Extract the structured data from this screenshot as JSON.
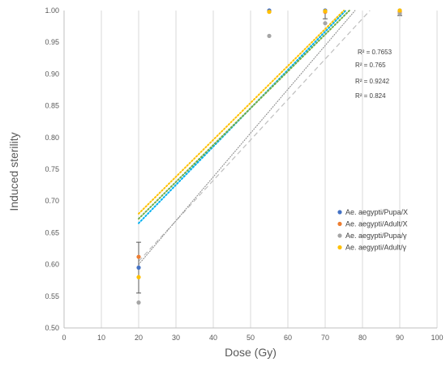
{
  "chart_data": {
    "type": "scatter",
    "title": "",
    "xlabel": "Dose (Gy)",
    "ylabel": "Induced sterility",
    "xlim": [
      0,
      100
    ],
    "ylim": [
      0.5,
      1.0
    ],
    "x_ticks": [
      "0",
      "10",
      "20",
      "30",
      "40",
      "50",
      "60",
      "70",
      "80",
      "90",
      "100"
    ],
    "y_ticks": [
      "0.50",
      "0.55",
      "0.60",
      "0.65",
      "0.70",
      "0.75",
      "0.80",
      "0.85",
      "0.90",
      "0.95",
      "1.00"
    ],
    "grid": "vertical",
    "legend_position": "right-middle",
    "series": [
      {
        "name": "Ae. aegypti/Pupa/X",
        "color": "#4472C4",
        "points": [
          {
            "x": 20,
            "y": 0.595,
            "err": 0.04
          },
          {
            "x": 55,
            "y": 1.0
          },
          {
            "x": 70,
            "y": 1.0
          },
          {
            "x": 90,
            "y": 1.0
          }
        ],
        "trendline": {
          "from": [
            20,
            0.665
          ],
          "to": [
            75.5,
            1.0
          ],
          "color": "#00B0F0",
          "dash": "1.5,2.5",
          "r2": "R² = 0.765"
        }
      },
      {
        "name": "Ae. aegypti/Adult/X",
        "color": "#ED7D31",
        "points": [
          {
            "x": 20,
            "y": 0.612
          },
          {
            "x": 55,
            "y": 0.998
          },
          {
            "x": 70,
            "y": 0.998
          },
          {
            "x": 90,
            "y": 0.998
          }
        ],
        "trendline": {
          "from": [
            20,
            0.672
          ],
          "to": [
            76.5,
            1.0
          ],
          "color": "#70AD47",
          "dash": "1.5,2.5",
          "r2": "R² = 0.7653"
        }
      },
      {
        "name": "Ae. aegypti/Pupa/γ",
        "color": "#A5A5A5",
        "points": [
          {
            "x": 20,
            "y": 0.54
          },
          {
            "x": 55,
            "y": 0.96
          },
          {
            "x": 70,
            "y": 0.98
          },
          {
            "x": 90,
            "y": 0.995
          }
        ],
        "trendline": {
          "from": [
            20,
            0.6
          ],
          "to": [
            78,
            1.0
          ],
          "color": "#8C8C8C",
          "dash": "1.5,2.5",
          "r2": "R² = 0.9242"
        }
      },
      {
        "name": "Ae. aegypti/Adult/γ",
        "color": "#FFC000",
        "points": [
          {
            "x": 20,
            "y": 0.58
          },
          {
            "x": 55,
            "y": 0.998
          },
          {
            "x": 70,
            "y": 0.999
          },
          {
            "x": 90,
            "y": 1.0
          }
        ],
        "trendline": {
          "from": [
            20,
            0.68
          ],
          "to": [
            75,
            1.0
          ],
          "color": "#FFC000",
          "dash": "1.5,2.5",
          "r2": "R² = 0.824"
        }
      }
    ],
    "extra_trendline": {
      "from": [
        20,
        0.605
      ],
      "to": [
        82,
        1.0
      ],
      "color": "#BFBFBF",
      "dash": "6,4"
    }
  }
}
